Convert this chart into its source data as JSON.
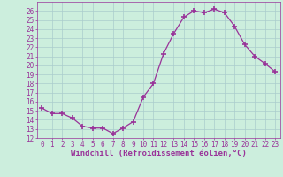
{
  "x": [
    0,
    1,
    2,
    3,
    4,
    5,
    6,
    7,
    8,
    9,
    10,
    11,
    12,
    13,
    14,
    15,
    16,
    17,
    18,
    19,
    20,
    21,
    22,
    23
  ],
  "y": [
    15.3,
    14.7,
    14.7,
    14.2,
    13.3,
    13.1,
    13.1,
    12.5,
    13.1,
    13.8,
    16.5,
    18.0,
    21.3,
    23.5,
    25.3,
    26.0,
    25.8,
    26.2,
    25.8,
    24.3,
    22.3,
    21.0,
    20.2,
    19.3
  ],
  "line_color": "#993399",
  "marker": "+",
  "marker_size": 4,
  "marker_lw": 1.2,
  "bg_color": "#cceedd",
  "grid_color": "#aacccc",
  "xlabel": "Windchill (Refroidissement éolien,°C)",
  "xlabel_fontsize": 6.5,
  "tick_fontsize": 5.5,
  "ylim": [
    12,
    27
  ],
  "xlim": [
    -0.5,
    23.5
  ],
  "yticks": [
    12,
    13,
    14,
    15,
    16,
    17,
    18,
    19,
    20,
    21,
    22,
    23,
    24,
    25,
    26
  ],
  "xticks": [
    0,
    1,
    2,
    3,
    4,
    5,
    6,
    7,
    8,
    9,
    10,
    11,
    12,
    13,
    14,
    15,
    16,
    17,
    18,
    19,
    20,
    21,
    22,
    23
  ]
}
